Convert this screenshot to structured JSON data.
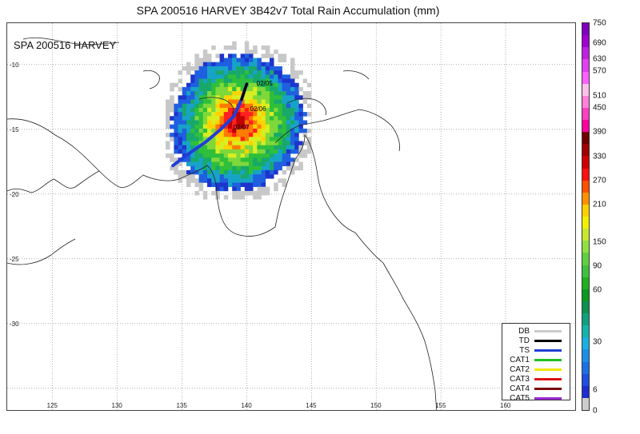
{
  "title": "SPA 200516 HARVEY 3B42v7 Total Rain Accumulation (mm)",
  "storm_label": "SPA 200516 HARVEY",
  "lat_labels": [
    "-10",
    "-15",
    "-20",
    "-25",
    "-30"
  ],
  "lon_labels": [
    "125",
    "130",
    "135",
    "140",
    "145",
    "150",
    "155",
    "160"
  ],
  "date_labels": [
    "02/05",
    "02/06",
    "02/07"
  ],
  "legend": [
    {
      "label": "DB",
      "color": "#cccccc"
    },
    {
      "label": "TD",
      "color": "#000000"
    },
    {
      "label": "TS",
      "color": "#1f3fd6"
    },
    {
      "label": "CAT1",
      "color": "#22c022"
    },
    {
      "label": "CAT2",
      "color": "#f2e600"
    },
    {
      "label": "CAT3",
      "color": "#e01010"
    },
    {
      "label": "CAT4",
      "color": "#7a0a0a"
    },
    {
      "label": "CAT5",
      "color": "#9a2bd6"
    }
  ],
  "colorbar": {
    "ticks": [
      "0",
      "6",
      "30",
      "60",
      "90",
      "150",
      "210",
      "270",
      "330",
      "390",
      "450",
      "510",
      "570",
      "630",
      "690",
      "750"
    ],
    "colors": [
      "#cccccc",
      "#1a2fd0",
      "#1f4fe0",
      "#1e6fe6",
      "#1d8fe8",
      "#1ab0e0",
      "#15b4a8",
      "#10a080",
      "#0d9050",
      "#0a9a20",
      "#20b020",
      "#40c040",
      "#60d040",
      "#90e040",
      "#c8e830",
      "#f0f000",
      "#ffd000",
      "#ff9000",
      "#ff5000",
      "#ff1010",
      "#d00000",
      "#a00000",
      "#700000",
      "#ff00a0",
      "#ff40c0",
      "#ff80d8",
      "#ffc0e8",
      "#ff60ff",
      "#e040f0",
      "#c020e0",
      "#a000d0",
      "#8000c0"
    ]
  },
  "track": {
    "points": [
      [
        134.3,
        -17.8
      ],
      [
        135.5,
        -16.9
      ],
      [
        136.8,
        -16.0
      ],
      [
        138.0,
        -15.0
      ],
      [
        139.0,
        -14.0
      ],
      [
        139.6,
        -12.7
      ],
      [
        140.0,
        -11.5
      ]
    ],
    "color": "#1f3fd6",
    "td_segment": [
      [
        139.6,
        -12.7
      ],
      [
        140.0,
        -11.5
      ]
    ],
    "td_color": "#000000"
  }
}
